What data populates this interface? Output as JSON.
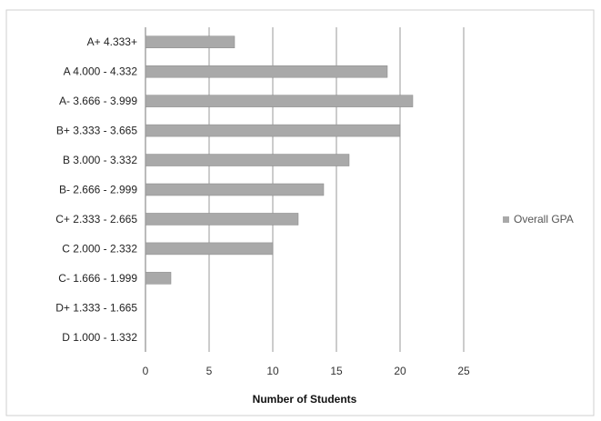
{
  "chart_data": {
    "type": "bar",
    "orientation": "horizontal",
    "categories": [
      "A+ 4.333+",
      "A 4.000 - 4.332",
      "A- 3.666 - 3.999",
      "B+ 3.333 - 3.665",
      "B 3.000 - 3.332",
      "B- 2.666 - 2.999",
      "C+ 2.333 - 2.665",
      "C 2.000 - 2.332",
      "C- 1.666 - 1.999",
      "D+ 1.333 - 1.665",
      "D 1.000 - 1.332"
    ],
    "series": [
      {
        "name": "Overall GPA",
        "values": [
          7,
          19,
          21,
          20,
          16,
          14,
          12,
          10,
          2,
          0,
          0
        ]
      }
    ],
    "xlabel": "Number of Students",
    "ylabel": "",
    "title": "",
    "xlim": [
      0,
      25
    ],
    "xticks": [
      "0",
      "5",
      "10",
      "15",
      "20",
      "25"
    ],
    "grid": true,
    "legend_position": "right",
    "bar_color": "#a9a9a9"
  }
}
